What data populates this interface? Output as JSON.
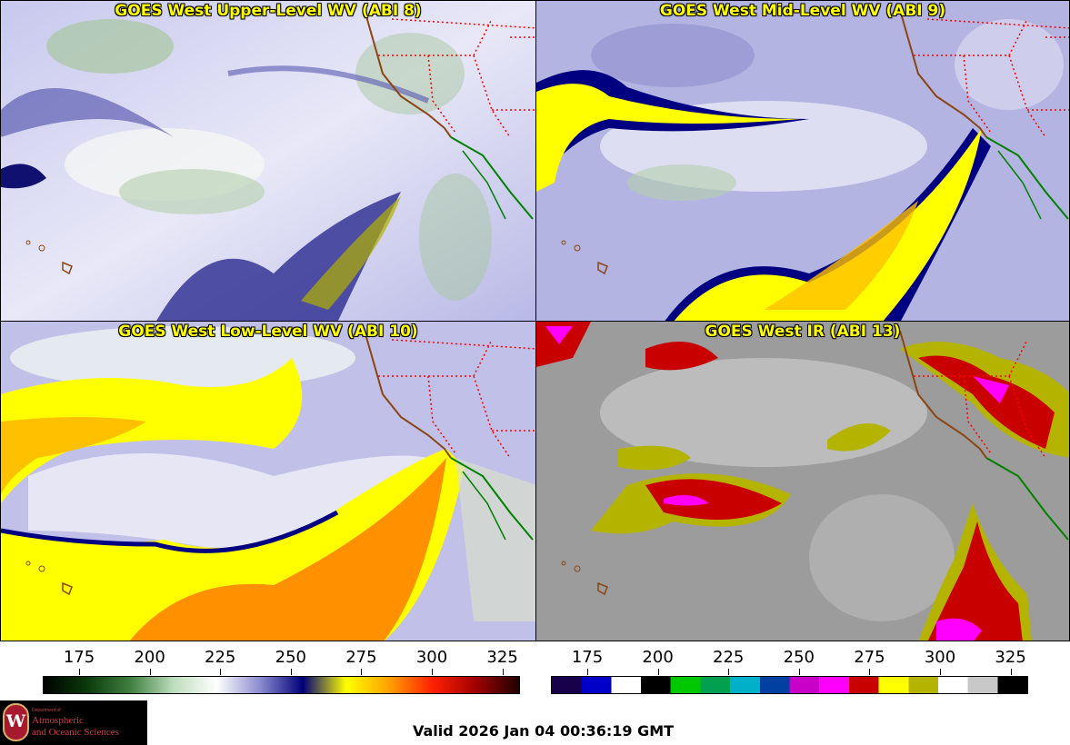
{
  "panels": [
    {
      "title": "GOES West Upper-Level WV (ABI 8)"
    },
    {
      "title": "GOES West Mid-Level WV (ABI 9)"
    },
    {
      "title": "GOES West Low-Level WV (ABI 10)"
    },
    {
      "title": "GOES West IR (ABI 13)"
    }
  ],
  "colorbars": {
    "wv": {
      "ticks": [
        "175",
        "200",
        "225",
        "250",
        "275",
        "300",
        "325"
      ],
      "stops": [
        "#000000",
        "#0b3a0b",
        "#3f7f3f",
        "#bcdcbc",
        "#ffffff",
        "#8c8cd0",
        "#000078",
        "#ffff00",
        "#ffa000",
        "#ff2000",
        "#a00000",
        "#200000"
      ]
    },
    "ir": {
      "ticks": [
        "175",
        "200",
        "225",
        "250",
        "275",
        "300",
        "325"
      ],
      "segments": [
        "#18004a",
        "#0000c8",
        "#ffffff",
        "#000000",
        "#00c800",
        "#00a050",
        "#00b0c8",
        "#0040a0",
        "#c800c8",
        "#ff00ff",
        "#c80000",
        "#ffff00",
        "#b4b400",
        "#ffffff",
        "#c8c8c8",
        "#000000"
      ]
    }
  },
  "colors": {
    "title": "#ffff00",
    "coast": "#8b4513",
    "border": "#ff0000",
    "mexico": "#008000"
  },
  "logo": {
    "dept": "Department of",
    "line1": "Atmospheric",
    "line2": "and Oceanic Sciences",
    "seal": "W"
  },
  "valid_time": "Valid 2026 Jan 04 00:36:19 GMT"
}
